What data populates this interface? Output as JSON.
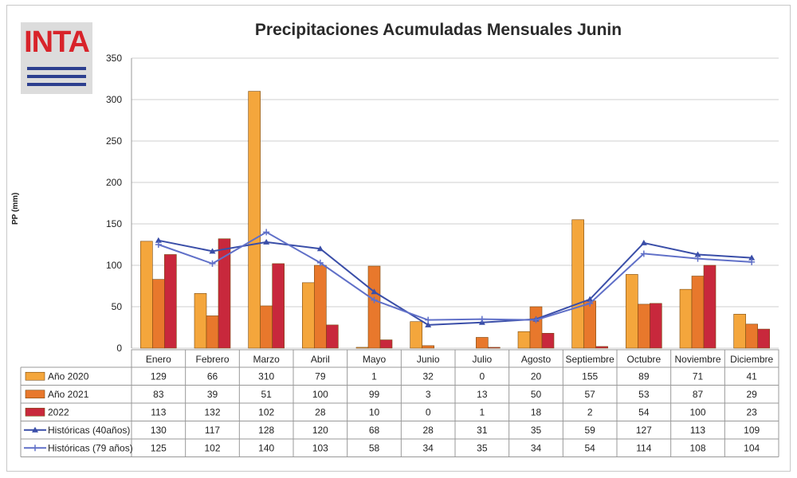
{
  "logo": {
    "text": "INTA"
  },
  "chart_data": {
    "type": "bar",
    "title": "Precipitaciones Acumuladas Mensuales Junin",
    "ylabel": "PP (mm)",
    "xlabel": "",
    "ylim": [
      0,
      350
    ],
    "yticks": [
      0,
      50,
      100,
      150,
      200,
      250,
      300,
      350
    ],
    "grid": true,
    "categories": [
      "Enero",
      "Febrero",
      "Marzo",
      "Abril",
      "Mayo",
      "Junio",
      "Julio",
      "Agosto",
      "Septiembre",
      "Octubre",
      "Noviembre",
      "Diciembre"
    ],
    "series": [
      {
        "name": "Año 2020",
        "kind": "bar",
        "color": "#f4a63c",
        "values": [
          129,
          66,
          310,
          79,
          1,
          32,
          0,
          20,
          155,
          89,
          71,
          41
        ]
      },
      {
        "name": "Año 2021",
        "kind": "bar",
        "color": "#e8782c",
        "values": [
          83,
          39,
          51,
          100,
          99,
          3,
          13,
          50,
          57,
          53,
          87,
          29
        ]
      },
      {
        "name": "2022",
        "kind": "bar",
        "color": "#c8283c",
        "values": [
          113,
          132,
          102,
          28,
          10,
          0,
          1,
          18,
          2,
          54,
          100,
          23
        ]
      },
      {
        "name": "Históricas (40años)",
        "kind": "line",
        "marker": "triangle",
        "color": "#3a4ea8",
        "values": [
          130,
          117,
          128,
          120,
          68,
          28,
          31,
          35,
          59,
          127,
          113,
          109
        ]
      },
      {
        "name": "Históricas (79 años)",
        "kind": "line",
        "marker": "cross",
        "color": "#6070c8",
        "values": [
          125,
          102,
          140,
          103,
          58,
          34,
          35,
          34,
          54,
          114,
          108,
          104
        ]
      }
    ],
    "data_table": true
  }
}
